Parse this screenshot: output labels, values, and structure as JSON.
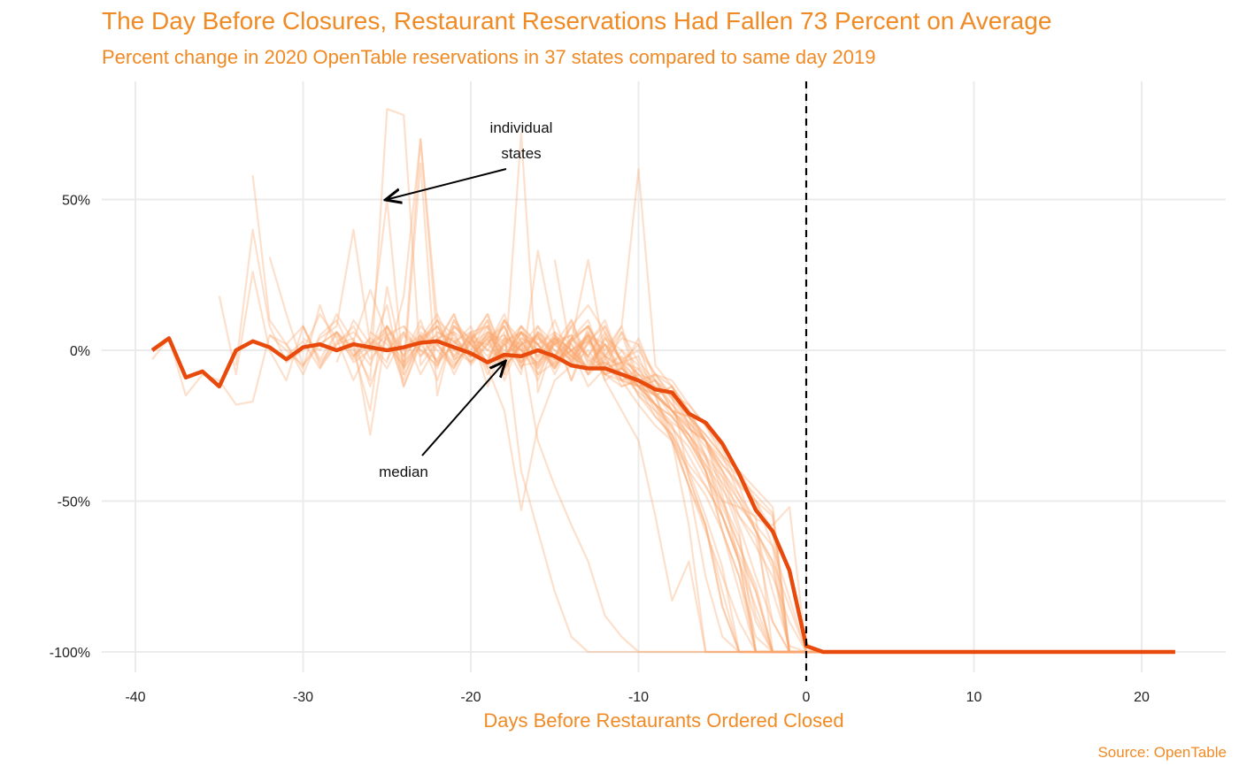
{
  "chart_data": {
    "type": "line",
    "title": "The Day Before Closures, Restaurant Reservations Had Fallen 73 Percent on Average",
    "subtitle": "Percent change in 2020 OpenTable reservations in 37 states compared to same day 2019",
    "xlabel": "Days Before Restaurants Ordered Closed",
    "ylabel": "",
    "caption": "Source: OpenTable",
    "xlim": [
      -41,
      23
    ],
    "ylim": [
      -105,
      80
    ],
    "x_ticks": [
      -40,
      -30,
      -20,
      -10,
      0,
      10,
      20
    ],
    "x_tick_labels": [
      "-40",
      "-30",
      "-20",
      "-10",
      "0",
      "10",
      "20"
    ],
    "y_ticks": [
      50,
      0,
      -50,
      -100
    ],
    "y_tick_labels": [
      "50%",
      "0%",
      "-50%",
      "-100%"
    ],
    "grid": true,
    "vline": {
      "x": 0,
      "style": "dashed",
      "color": "#000000"
    },
    "annotations": [
      {
        "text": [
          "individual",
          "states"
        ],
        "arrow_to": [
          -25,
          50
        ]
      },
      {
        "text": [
          "median"
        ],
        "arrow_to": [
          -18,
          -4
        ]
      }
    ],
    "colors": {
      "title": "#F08A24",
      "median": "#E84A0C",
      "states": "#F9A66C",
      "grid": "#EBEBEB"
    },
    "median": {
      "start": -39,
      "values": [
        0,
        4,
        -9,
        -7,
        -12,
        0,
        3,
        1,
        -3,
        1,
        2,
        0,
        2,
        1,
        0,
        1,
        2.5,
        3,
        1,
        -1,
        -4,
        -1.5,
        -2,
        0,
        -2,
        -5,
        -6,
        -6,
        -8,
        -10,
        -13,
        -14,
        -21,
        -24,
        -31,
        -41,
        -53,
        -60,
        -73,
        -98,
        -100,
        -100,
        -100,
        -100,
        -100,
        -100,
        -100,
        -100,
        -100,
        -100,
        -100,
        -100,
        -100,
        -100,
        -100,
        -100,
        -100,
        -100,
        -100,
        -100,
        -100,
        -100
      ]
    },
    "states_end": 22,
    "states": [
      {
        "start": -39,
        "values": [
          -3,
          4,
          -15,
          -8,
          -10,
          -18,
          -17,
          5,
          0,
          -5,
          2,
          6,
          -2,
          3,
          0,
          1,
          5,
          -4,
          2,
          8,
          -6,
          -20,
          -53,
          -25,
          -10,
          -5,
          0,
          -8,
          -12,
          -10,
          -15,
          -20,
          -22,
          -30,
          -40,
          -55,
          -65,
          -75,
          -90,
          -100
        ]
      },
      {
        "start": -35,
        "values": [
          18,
          -8,
          26,
          0,
          -10,
          8,
          -5,
          2,
          4,
          -12,
          5,
          8,
          2,
          -6,
          10,
          -2,
          6,
          3,
          0,
          -8,
          -4,
          2,
          -6,
          5,
          -10,
          -18,
          -25,
          -30,
          -45,
          -60,
          -75,
          -90,
          -100
        ]
      },
      {
        "start": -34,
        "values": [
          -5,
          40,
          8,
          -4,
          0,
          12,
          4,
          -10,
          2,
          6,
          -12,
          3,
          10,
          5,
          -2,
          4,
          8,
          -5,
          -4,
          2,
          10,
          -3,
          -8,
          0,
          -5,
          -12,
          -15,
          -22,
          -35,
          -50,
          -65,
          -80,
          -100
        ]
      },
      {
        "start": -33,
        "values": [
          58,
          10,
          2,
          -6,
          15,
          0,
          3,
          20,
          5,
          -8,
          2,
          8,
          0,
          3,
          12,
          -4,
          2,
          -10,
          5,
          0,
          4,
          -5,
          -2,
          -8,
          -10,
          -20,
          -28,
          -40,
          -55,
          -70,
          -85,
          -100
        ]
      },
      {
        "start": -32,
        "values": [
          31,
          12,
          -5,
          4,
          8,
          40,
          2,
          -4,
          18,
          70,
          10,
          -2,
          6,
          8,
          -10,
          4,
          2,
          -6,
          3,
          8,
          -2,
          6,
          -12,
          -8,
          -15,
          -18,
          -25,
          -35,
          -48,
          -60,
          -80,
          -98,
          -100
        ]
      },
      {
        "start": -32,
        "values": [
          5,
          2,
          8,
          -3,
          6,
          1,
          -10,
          80,
          78,
          -5,
          3,
          12,
          -2,
          4,
          -8,
          6,
          2,
          -5,
          0,
          3,
          8,
          -4,
          -6,
          -15,
          -12,
          -22,
          -30,
          -42,
          -58,
          -75,
          -90,
          -100
        ]
      },
      {
        "start": -31,
        "values": [
          2,
          -8,
          5,
          10,
          -2,
          4,
          50,
          -8,
          62,
          -15,
          8,
          2,
          -5,
          3,
          6,
          -2,
          10,
          -4,
          5,
          2,
          -3,
          0,
          -8,
          -10,
          -18,
          -25,
          -33,
          -45,
          -60,
          -70,
          -85,
          -100
        ]
      },
      {
        "start": -31,
        "values": [
          -2,
          3,
          -6,
          6,
          0,
          -20,
          21,
          -5,
          70,
          3,
          4,
          -2,
          8,
          -6,
          2,
          5,
          -3,
          4,
          10,
          -5,
          -10,
          -12,
          -15,
          -20,
          -22,
          -28,
          -35,
          -40,
          -50,
          -65,
          -82,
          -100
        ]
      },
      {
        "start": -30,
        "values": [
          4,
          0,
          12,
          3,
          -28,
          8,
          -2,
          5,
          -4,
          10,
          3,
          -6,
          2,
          8,
          -3,
          5,
          0,
          -12,
          -6,
          6,
          -4,
          -10,
          -18,
          -25,
          -40,
          -60,
          -80,
          -100
        ]
      },
      {
        "start": -30,
        "values": [
          8,
          -4,
          3,
          6,
          0,
          15,
          -12,
          2,
          5,
          -8,
          3,
          2,
          12,
          -4,
          6,
          -2,
          4,
          8,
          -6,
          -4,
          -2,
          -15,
          -28,
          -45,
          -75,
          -95,
          -100
        ]
      },
      {
        "start": -29,
        "values": [
          -6,
          2,
          8,
          -3,
          4,
          -10,
          6,
          2,
          -5,
          3,
          10,
          -8,
          72,
          -14,
          4,
          -2,
          5,
          0,
          8,
          -10,
          -18,
          -30,
          -45,
          -58,
          -85,
          -100
        ]
      },
      {
        "start": -29,
        "values": [
          2,
          6,
          -4,
          0,
          8,
          -2,
          10,
          -5,
          3,
          6,
          -12,
          4,
          2,
          -30,
          -45,
          -58,
          -70,
          -88,
          -95,
          -100
        ]
      },
      {
        "start": -28,
        "values": [
          5,
          -3,
          2,
          8,
          -6,
          4,
          12,
          0,
          -4,
          6,
          2,
          -8,
          33,
          5,
          -10,
          8,
          -3,
          4,
          2,
          -15,
          -30,
          -58,
          -100
        ]
      },
      {
        "start": -28,
        "values": [
          -4,
          10,
          2,
          -6,
          5,
          0,
          -3,
          8,
          4,
          -2,
          6,
          -40,
          -60,
          -80,
          -95,
          -100
        ]
      },
      {
        "start": -27,
        "values": [
          3,
          -5,
          8,
          0,
          4,
          -10,
          6,
          2,
          -4,
          10,
          -2,
          5,
          -8,
          3,
          30,
          -2,
          -6,
          4,
          -10,
          -15,
          -42,
          -58,
          -80,
          -100
        ]
      },
      {
        "start": -27,
        "values": [
          -2,
          4,
          0,
          6,
          -8,
          2,
          12,
          -4,
          3,
          5,
          -6,
          8,
          2,
          -4,
          6,
          -10,
          -20,
          -30,
          -55,
          -83,
          -70,
          -100
        ]
      },
      {
        "start": -26,
        "values": [
          6,
          2,
          -5,
          4,
          8,
          -3,
          0,
          10,
          -6,
          2,
          4,
          -2,
          8,
          15,
          6,
          -4,
          2,
          -8,
          -12,
          -20,
          -30,
          -45,
          -60,
          -100
        ]
      },
      {
        "start": -26,
        "values": [
          0,
          5,
          -4,
          8,
          2,
          -6,
          4,
          12,
          -2,
          6,
          -8,
          3,
          -4,
          2,
          10,
          -5,
          -15,
          -22,
          -28,
          -40,
          -55,
          -72,
          -100
        ]
      },
      {
        "start": -25,
        "values": [
          4,
          -6,
          2,
          10,
          -3,
          5,
          0,
          8,
          -4,
          2,
          6,
          -10,
          3,
          -2,
          8,
          60,
          -5,
          -12,
          -20,
          -30,
          -48,
          -70,
          -100
        ]
      },
      {
        "start": -25,
        "values": [
          -3,
          6,
          0,
          -5,
          8,
          2,
          -4,
          10,
          3,
          -6,
          2,
          5,
          -8,
          4,
          0,
          -10,
          -20,
          -25,
          -42,
          -58,
          -85,
          -100
        ]
      },
      {
        "start": -24,
        "values": [
          8,
          -2,
          4,
          6,
          -5,
          2,
          10,
          0,
          -6,
          3,
          5,
          -2,
          8,
          -4,
          -10,
          -15,
          -12,
          -25,
          -35,
          -55,
          -70,
          -100
        ]
      },
      {
        "start": -24,
        "values": [
          -4,
          3,
          8,
          -2,
          5,
          -8,
          2,
          6,
          0,
          -3,
          10,
          -5,
          2,
          -6,
          -12,
          -10,
          -20,
          -30,
          -40,
          -60,
          -75,
          -100
        ]
      },
      {
        "start": -23,
        "values": [
          5,
          0,
          -6,
          4,
          8,
          -2,
          3,
          -5,
          6,
          2,
          -8,
          4,
          -3,
          -8,
          -14,
          -22,
          -28,
          -38,
          -50,
          -62,
          -88,
          -100
        ]
      },
      {
        "start": -23,
        "values": [
          -2,
          6,
          3,
          -4,
          2,
          8,
          -6,
          4,
          0,
          -3,
          5,
          -10,
          -6,
          -12,
          -18,
          -25,
          -35,
          -45,
          -55,
          -70,
          -90,
          -100
        ]
      },
      {
        "start": -22,
        "values": [
          2,
          -4,
          6,
          0,
          -3,
          8,
          2,
          -5,
          4,
          -2,
          -6,
          -4,
          -15,
          -20,
          -30,
          -40,
          -48,
          -60,
          -75,
          -95,
          -100
        ]
      },
      {
        "start": -22,
        "values": [
          6,
          3,
          -2,
          4,
          -6,
          2,
          8,
          -3,
          0,
          5,
          -8,
          -10,
          -12,
          -22,
          -28,
          -38,
          -45,
          -55,
          -68,
          -80,
          -100
        ]
      },
      {
        "start": -21,
        "values": [
          -5,
          2,
          6,
          -3,
          4,
          0,
          -6,
          3,
          8,
          -2,
          -5,
          -12,
          -18,
          -22,
          -30,
          -40,
          -52,
          -65,
          -78,
          -100
        ]
      },
      {
        "start": -21,
        "values": [
          3,
          -2,
          5,
          0,
          -4,
          6,
          2,
          -3,
          4,
          -6,
          -8,
          -14,
          -18,
          -26,
          -32,
          -42,
          -50,
          -52,
          -55,
          -100
        ]
      },
      {
        "start": -20,
        "values": [
          0,
          5,
          -3,
          8,
          2,
          -6,
          4,
          -2,
          6,
          -4,
          -10,
          -8,
          -16,
          -24,
          -30,
          -38,
          -45,
          -50,
          -60,
          -100
        ]
      },
      {
        "start": -20,
        "values": [
          4,
          -4,
          2,
          -2,
          6,
          0,
          -5,
          3,
          -8,
          -6,
          -12,
          -15,
          -20,
          -28,
          -36,
          -44,
          -52,
          -58,
          -65,
          -100
        ]
      },
      {
        "start": -19,
        "values": [
          -3,
          4,
          0,
          5,
          -2,
          8,
          -4,
          2,
          -10,
          -8,
          -14,
          -20,
          -26,
          -30,
          -40,
          -50,
          -60,
          -70,
          -100
        ]
      },
      {
        "start": -19,
        "values": [
          2,
          -3,
          6,
          -2,
          4,
          0,
          -6,
          -4,
          -8,
          -12,
          -18,
          -22,
          -30,
          -38,
          -46,
          -55,
          -62,
          -90,
          -100
        ]
      },
      {
        "start": -18,
        "values": [
          5,
          0,
          -4,
          3,
          -2,
          6,
          -8,
          -6,
          -10,
          -15,
          -20,
          -25,
          -32,
          -40,
          -48,
          -56,
          -58,
          -52,
          -100
        ]
      },
      {
        "start": -18,
        "values": [
          -2,
          6,
          2,
          -4,
          0,
          -6,
          -2,
          -12,
          -10,
          -18,
          -24,
          -28,
          -35,
          -42,
          -50,
          -60,
          -72,
          -100
        ]
      },
      {
        "start": -17,
        "values": [
          3,
          -5,
          4,
          0,
          -8,
          -3,
          -10,
          -6,
          -14,
          -20,
          -26,
          -30,
          -38,
          -44,
          -50,
          -55,
          -100
        ]
      },
      {
        "start": -16,
        "values": [
          0,
          4,
          -2,
          -6,
          2,
          -8,
          -12,
          -10,
          -16,
          -22,
          -28,
          -35,
          -40,
          -46,
          -52,
          -100
        ]
      },
      {
        "start": -15,
        "values": [
          30,
          -2,
          -6,
          -4,
          -8,
          -10,
          -12,
          -18,
          -24,
          -30,
          -36,
          -42,
          -48,
          -54,
          -100
        ]
      }
    ]
  }
}
